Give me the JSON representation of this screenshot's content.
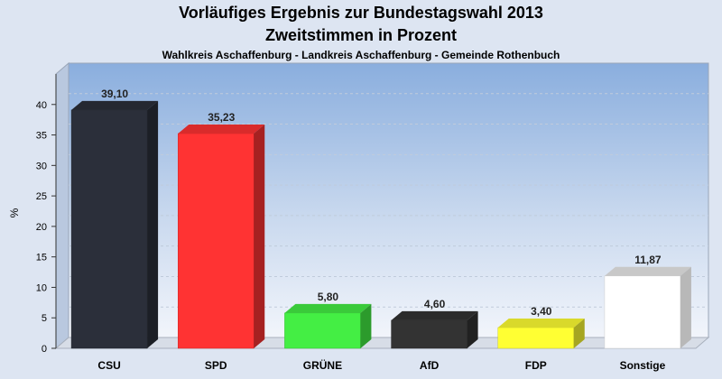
{
  "title": "Vorläufiges Ergebnis zur Bundestagswahl 2013",
  "subtitle": "Zweitstimmen in Prozent",
  "subsubtitle": "Wahlkreis Aschaffenburg - Landkreis Aschaffenburg - Gemeinde Rothenbuch",
  "chart_data": {
    "type": "bar",
    "ylabel": "%",
    "xlabel": "",
    "ylim": [
      0,
      45
    ],
    "yticks": [
      0,
      5,
      10,
      15,
      20,
      25,
      30,
      35,
      40
    ],
    "grid": true,
    "categories": [
      "CSU",
      "SPD",
      "GRÜNE",
      "AfD",
      "FDP",
      "Sonstige"
    ],
    "values": [
      39.1,
      35.23,
      5.8,
      4.6,
      3.4,
      11.87
    ],
    "value_labels": [
      "39,10",
      "35,23",
      "5,80",
      "4,60",
      "3,40",
      "11,87"
    ],
    "colors": [
      "#2b2f3a",
      "#ff3333",
      "#44ee44",
      "#333333",
      "#ffff33",
      "#ffffff"
    ]
  }
}
